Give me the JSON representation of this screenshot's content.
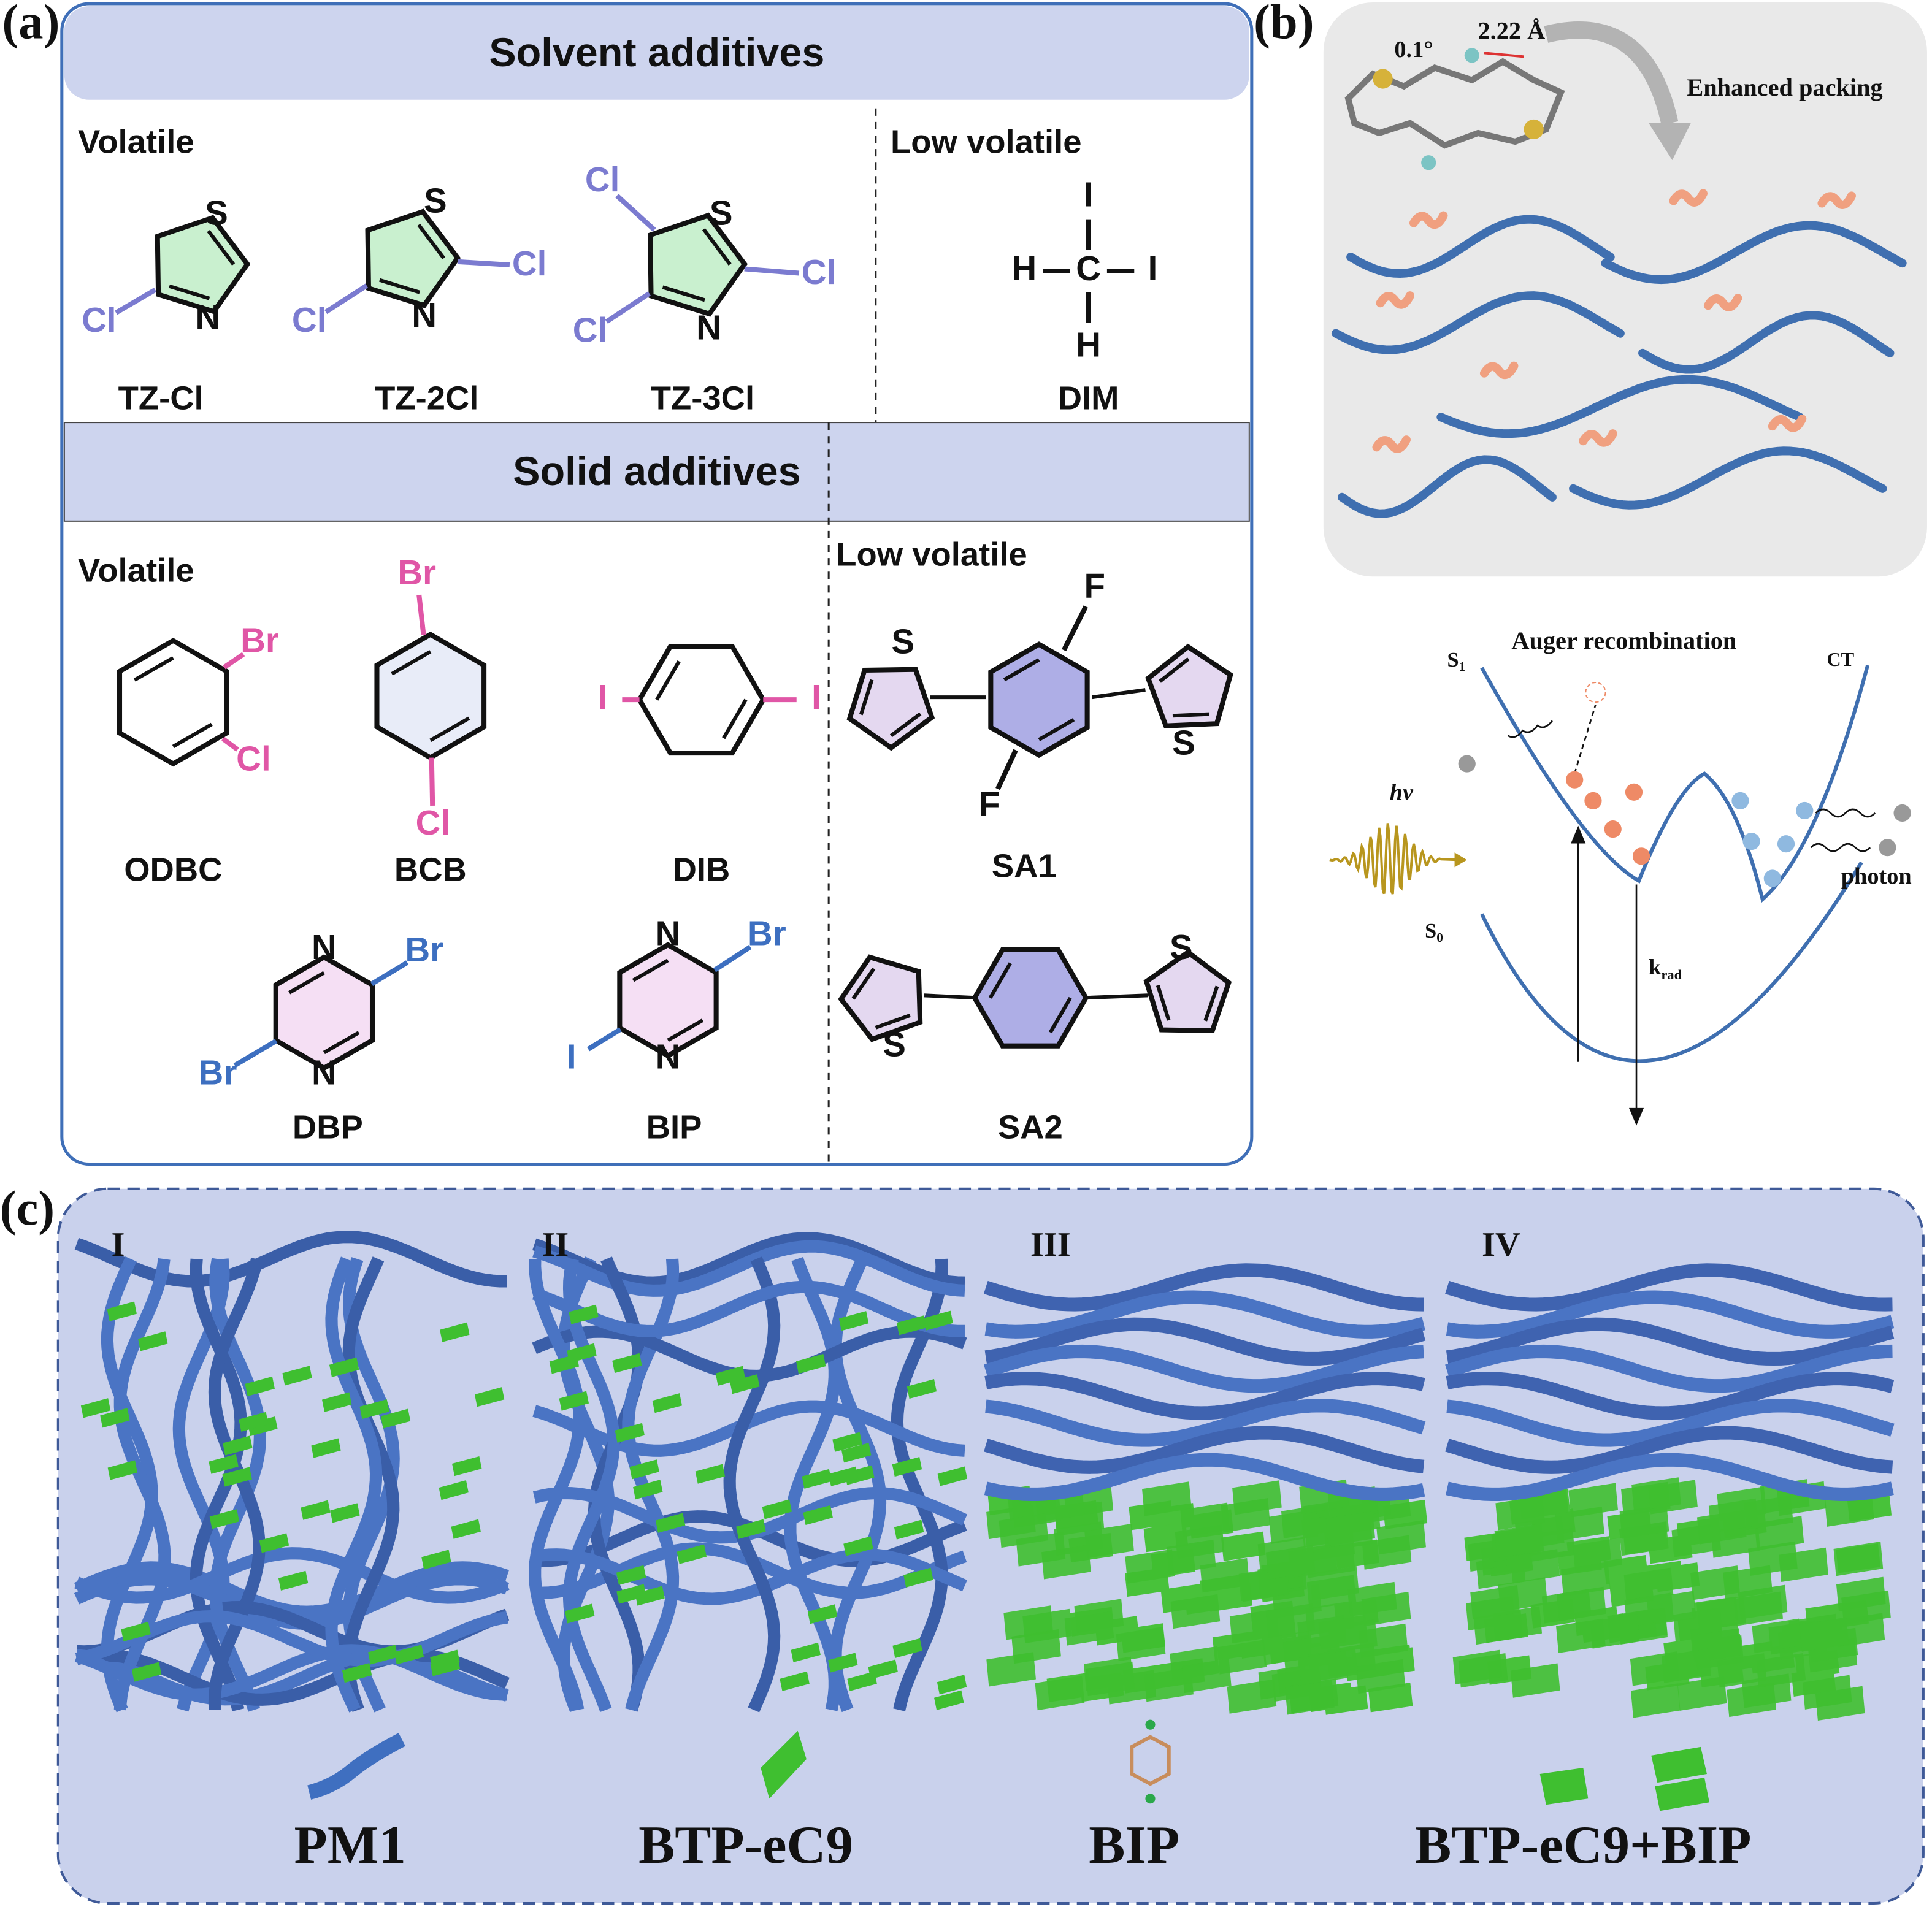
{
  "panel_a": {
    "label": "(a)",
    "solvent": {
      "title": "Solvent additives",
      "volatile": "Volatile",
      "low_volatile": "Low volatile",
      "molecules": [
        {
          "name": "TZ-Cl",
          "atoms": [
            "S",
            "N",
            "Cl"
          ]
        },
        {
          "name": "TZ-2Cl",
          "atoms": [
            "S",
            "N",
            "Cl",
            "Cl"
          ]
        },
        {
          "name": "TZ-3Cl",
          "atoms": [
            "Cl",
            "S",
            "Cl",
            "Cl",
            "N"
          ]
        },
        {
          "name": "DIM",
          "atoms": [
            "I",
            "H",
            "C",
            "I",
            "H"
          ]
        }
      ]
    },
    "solid": {
      "title": "Solid additives",
      "volatile": "Volatile",
      "low_volatile": "Low volatile",
      "molecules": [
        {
          "name": "ODBC",
          "atoms": [
            "Br",
            "Cl"
          ]
        },
        {
          "name": "BCB",
          "atoms": [
            "Br",
            "Cl"
          ]
        },
        {
          "name": "DIB",
          "atoms": [
            "I",
            "I"
          ]
        },
        {
          "name": "SA1",
          "atoms": [
            "S",
            "F",
            "F",
            "S"
          ]
        },
        {
          "name": "DBP",
          "atoms": [
            "N",
            "Br",
            "Br",
            "N"
          ]
        },
        {
          "name": "BIP",
          "atoms": [
            "N",
            "Br",
            "I",
            "N"
          ]
        },
        {
          "name": "SA2",
          "atoms": [
            "S",
            "S"
          ]
        }
      ]
    }
  },
  "panel_b": {
    "label": "(b)",
    "angle": "0.1°",
    "distance": "2.22 Å",
    "packing": "Enhanced packing",
    "auger": "Auger recombination",
    "s1": {
      "main": "S",
      "sub": "1"
    },
    "s0": {
      "main": "S",
      "sub": "0"
    },
    "ct": "CT",
    "hv": "hν",
    "photon": "photon",
    "k_rad": {
      "main": "k",
      "sub": "rad"
    }
  },
  "panel_c": {
    "label": "(c)",
    "roman": [
      "I",
      "II",
      "III",
      "IV"
    ],
    "names": [
      "PM1",
      "BTP-eC9",
      "BIP",
      "BTP-eC9+BIP"
    ]
  }
}
